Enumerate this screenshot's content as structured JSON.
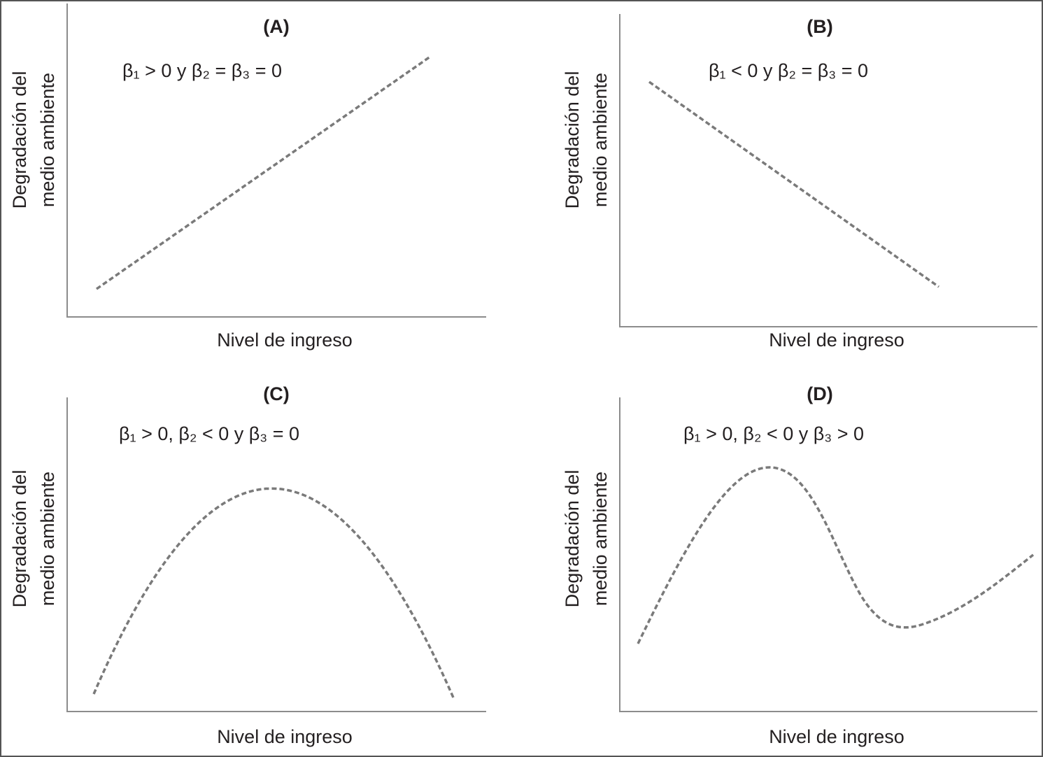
{
  "panels": [
    {
      "title": "(A)",
      "annotation": "β₁ > 0 y β₂ = β₃ = 0",
      "y_label": [
        "Degradación del",
        "medio ambiente"
      ],
      "x_label": "Nivel de ingreso"
    },
    {
      "title": "(B)",
      "annotation": "β₁ < 0 y β₂ = β₃ = 0",
      "y_label": [
        "Degradación del",
        "medio ambiente"
      ],
      "x_label": "Nivel de ingreso"
    },
    {
      "title": "(C)",
      "annotation": "β₁ > 0, β₂ < 0 y β₃ = 0",
      "y_label": [
        "Degradación del",
        "medio ambiente"
      ],
      "x_label": "Nivel de ingreso"
    },
    {
      "title": "(D)",
      "annotation": "β₁ > 0, β₂ < 0 y β₃ > 0",
      "y_label": [
        "Degradación del",
        "medio ambiente"
      ],
      "x_label": "Nivel de ingreso"
    }
  ]
}
